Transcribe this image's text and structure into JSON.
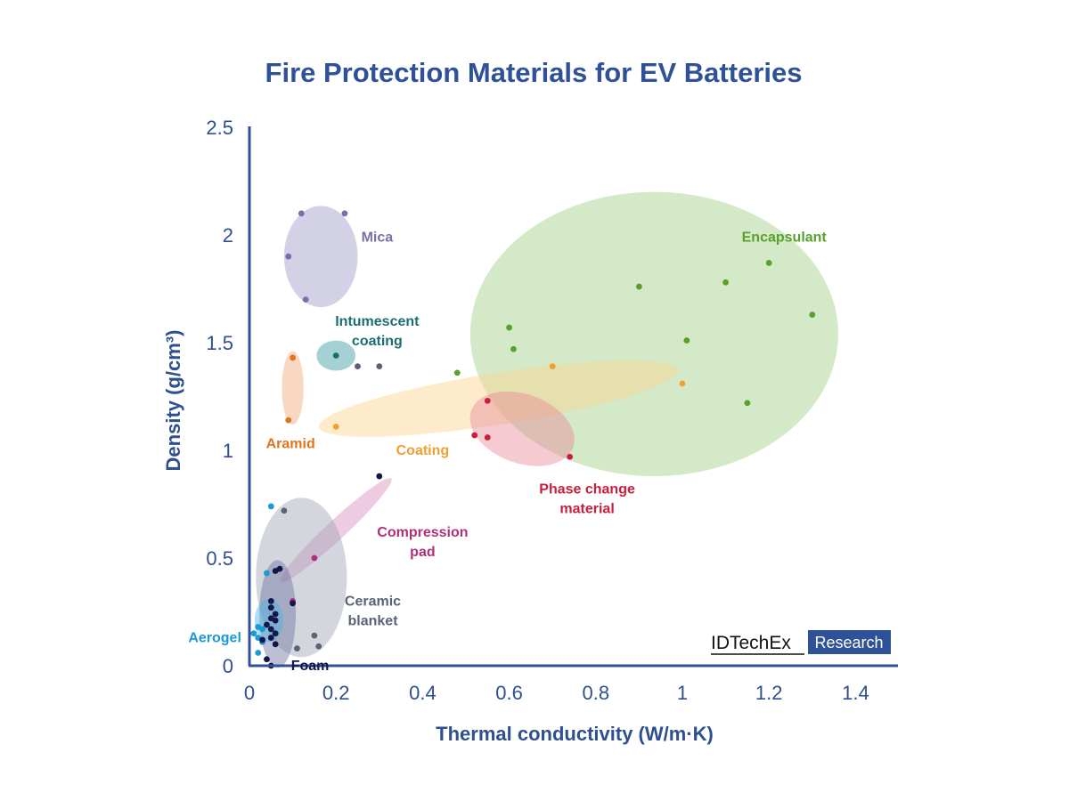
{
  "chart_data": {
    "type": "scatter",
    "title": "Fire Protection Materials for EV Batteries",
    "xlabel": "Thermal conductivity (W/m·K)",
    "ylabel": "Density (g/cm³)",
    "xlim": [
      0,
      1.5
    ],
    "ylim": [
      0,
      2.5
    ],
    "x_ticks": [
      "0",
      "0.2",
      "0.4",
      "0.6",
      "0.8",
      "1",
      "1.2",
      "1.4"
    ],
    "y_ticks": [
      "0",
      "0.5",
      "1",
      "1.5",
      "2",
      "2.5"
    ],
    "grid": false,
    "legend": "none",
    "series": [
      {
        "name": "Mica",
        "color": "#7a6faa",
        "points": [
          [
            0.12,
            2.1
          ],
          [
            0.22,
            2.1
          ],
          [
            0.09,
            1.9
          ],
          [
            0.13,
            1.7
          ]
        ]
      },
      {
        "name": "Intumescent coating",
        "color": "#1b6e72",
        "points": [
          [
            0.2,
            1.44
          ]
        ]
      },
      {
        "name": "Aramid",
        "color": "#e0741c",
        "points": [
          [
            0.1,
            1.43
          ],
          [
            0.09,
            1.14
          ]
        ]
      },
      {
        "name": "Coating",
        "color": "#f0a030",
        "points": [
          [
            0.2,
            1.11
          ],
          [
            0.7,
            1.39
          ],
          [
            1.0,
            1.31
          ]
        ]
      },
      {
        "name": "Encapsulant",
        "color": "#5aa02c",
        "points": [
          [
            1.2,
            1.87
          ],
          [
            0.9,
            1.76
          ],
          [
            1.1,
            1.78
          ],
          [
            0.6,
            1.57
          ],
          [
            1.3,
            1.63
          ],
          [
            0.61,
            1.47
          ],
          [
            1.01,
            1.51
          ],
          [
            0.48,
            1.36
          ],
          [
            1.15,
            1.22
          ]
        ]
      },
      {
        "name": "Phase change material",
        "color": "#c8203c",
        "points": [
          [
            0.55,
            1.23
          ],
          [
            0.52,
            1.07
          ],
          [
            0.55,
            1.06
          ],
          [
            0.74,
            0.97
          ]
        ]
      },
      {
        "name": "Compression pad",
        "color": "#b0307a",
        "points": [
          [
            0.15,
            0.5
          ],
          [
            0.1,
            0.3
          ]
        ]
      },
      {
        "name": "Ceramic blanket",
        "color": "#5a6275",
        "points": [
          [
            0.25,
            1.39
          ],
          [
            0.3,
            1.39
          ],
          [
            0.08,
            0.72
          ],
          [
            0.15,
            0.14
          ],
          [
            0.16,
            0.09
          ],
          [
            0.11,
            0.08
          ]
        ]
      },
      {
        "name": "Aerogel",
        "color": "#1a9ad6",
        "points": [
          [
            0.05,
            0.74
          ],
          [
            0.04,
            0.43
          ],
          [
            0.02,
            0.18
          ],
          [
            0.03,
            0.17
          ],
          [
            0.01,
            0.15
          ],
          [
            0.02,
            0.13
          ],
          [
            0.03,
            0.11
          ],
          [
            0.02,
            0.06
          ]
        ]
      },
      {
        "name": "Foam",
        "color": "#13164a",
        "points": [
          [
            0.3,
            0.88
          ],
          [
            0.07,
            0.45
          ],
          [
            0.06,
            0.44
          ],
          [
            0.1,
            0.29
          ],
          [
            0.05,
            0.3
          ],
          [
            0.05,
            0.27
          ],
          [
            0.06,
            0.24
          ],
          [
            0.05,
            0.22
          ],
          [
            0.06,
            0.21
          ],
          [
            0.04,
            0.19
          ],
          [
            0.05,
            0.17
          ],
          [
            0.06,
            0.15
          ],
          [
            0.05,
            0.13
          ],
          [
            0.03,
            0.12
          ],
          [
            0.06,
            0.1
          ],
          [
            0.04,
            0.03
          ],
          [
            0.05,
            0.0
          ]
        ]
      }
    ],
    "regions": [
      {
        "name": "Mica",
        "color": "#9e98c8",
        "cx": 0.165,
        "cy": 1.9,
        "rx": 0.085,
        "ry": 0.235,
        "angle": 0
      },
      {
        "name": "Intumescent coating",
        "color": "#3a9aa0",
        "cx": 0.2,
        "cy": 1.44,
        "rx": 0.045,
        "ry": 0.07,
        "angle": 0
      },
      {
        "name": "Aramid",
        "color": "#f0a878",
        "cx": 0.1,
        "cy": 1.29,
        "rx": 0.025,
        "ry": 0.17,
        "angle": 0
      },
      {
        "name": "Encapsulant",
        "color": "#9fcf85",
        "cx": 0.935,
        "cy": 1.54,
        "rx": 0.425,
        "ry": 0.66,
        "angle": 0
      },
      {
        "name": "Coating",
        "color": "#fcd38f",
        "cx": 0.575,
        "cy": 1.24,
        "rx": 0.42,
        "ry": 0.12,
        "angle": -9
      },
      {
        "name": "Phase change material",
        "color": "#e88a98",
        "cx": 0.63,
        "cy": 1.1,
        "rx": 0.125,
        "ry": 0.16,
        "angle": 20
      },
      {
        "name": "Compression pad",
        "color": "#d88fbe",
        "cx": 0.2,
        "cy": 0.63,
        "rx": 0.175,
        "ry": 0.045,
        "angle": -43
      },
      {
        "name": "Ceramic blanket",
        "color": "#a0a5b3",
        "cx": 0.12,
        "cy": 0.41,
        "rx": 0.105,
        "ry": 0.37,
        "angle": 0
      },
      {
        "name": "Foam",
        "color": "#6c74a0",
        "cx": 0.065,
        "cy": 0.24,
        "rx": 0.042,
        "ry": 0.25,
        "angle": 0
      },
      {
        "name": "Aerogel",
        "color": "#4ab3e6",
        "cx": 0.045,
        "cy": 0.21,
        "rx": 0.033,
        "ry": 0.1,
        "angle": 0
      }
    ],
    "annotations": [
      {
        "lines": [
          "Mica"
        ],
        "color": "#7a6faa",
        "x": 0.295,
        "y": 1.99,
        "anchor": "middle"
      },
      {
        "lines": [
          "Intumescent",
          "coating"
        ],
        "color": "#1b6e72",
        "x": 0.295,
        "y": 1.6,
        "anchor": "middle"
      },
      {
        "lines": [
          "Encapsulant"
        ],
        "color": "#5aa02c",
        "x": 1.235,
        "y": 1.99,
        "anchor": "middle"
      },
      {
        "lines": [
          "Aramid"
        ],
        "color": "#e0741c",
        "x": 0.095,
        "y": 1.03,
        "anchor": "middle"
      },
      {
        "lines": [
          "Coating"
        ],
        "color": "#f0a030",
        "x": 0.4,
        "y": 1.0,
        "anchor": "middle"
      },
      {
        "lines": [
          "Phase change",
          "material"
        ],
        "color": "#c8203c",
        "x": 0.78,
        "y": 0.82,
        "anchor": "middle"
      },
      {
        "lines": [
          "Compression",
          "pad"
        ],
        "color": "#b0307a",
        "x": 0.4,
        "y": 0.62,
        "anchor": "middle"
      },
      {
        "lines": [
          "Ceramic",
          "blanket"
        ],
        "color": "#5a6275",
        "x": 0.285,
        "y": 0.3,
        "anchor": "middle"
      },
      {
        "lines": [
          "Aerogel"
        ],
        "color": "#1a9ad6",
        "x": -0.08,
        "y": 0.13,
        "anchor": "middle"
      },
      {
        "lines": [
          "Foam"
        ],
        "color": "#13164a",
        "x": 0.14,
        "y": 0.0,
        "anchor": "middle"
      }
    ]
  },
  "logo": {
    "brand": "IDTechEx",
    "badge": "Research",
    "badge_color": "#2f5197"
  },
  "colors": {
    "title": "#2f5197",
    "axis": "#2f5197"
  }
}
